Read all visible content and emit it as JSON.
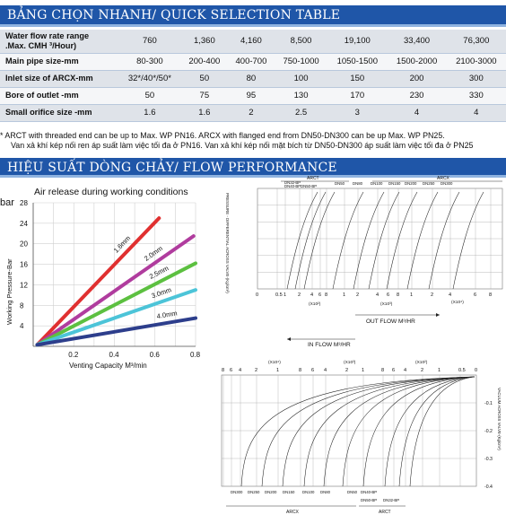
{
  "quick_table": {
    "title": "BẢNG CHỌN NHANH/ QUICK SELECTION TABLE",
    "rows": [
      {
        "label_lines": [
          "Water flow rate range",
          ".Max. CMH ³/Hour)"
        ],
        "values": [
          "760",
          "1,360",
          "4,160",
          "8,500",
          "19,100",
          "33,400",
          "76,300"
        ]
      },
      {
        "label_lines": [
          "Main pipe size-mm"
        ],
        "values": [
          "80-300",
          "200-400",
          "400-700",
          "750-1000",
          "1050-1500",
          "1500-2000",
          "2100-3000"
        ]
      },
      {
        "label_lines": [
          "Inlet size of ARCX-mm"
        ],
        "values": [
          "32*/40*/50*",
          "50",
          "80",
          "100",
          "150",
          "200",
          "300"
        ]
      },
      {
        "label_lines": [
          "Bore of outlet -mm"
        ],
        "values": [
          "50",
          "75",
          "95",
          "130",
          "170",
          "230",
          "330"
        ]
      },
      {
        "label_lines": [
          "Small orifice size -mm"
        ],
        "values": [
          "1.6",
          "1.6",
          "2",
          "2.5",
          "3",
          "4",
          "4"
        ]
      }
    ],
    "notes": [
      "* ARCT with threaded end can be up to Max. WP PN16. ARCX with flanged end from DN50-DN300 can be up Max. WP PN25.",
      "Van xả khí kép nối ren áp suất làm việc tối đa ở PN16. Van xả khí kép nối mặt bích từ DN50-DN300 áp suất làm việc tối đa ở PN25"
    ]
  },
  "flow_section": {
    "title": "HIỆU SUẤT DÒNG CHẢY/ FLOW PERFORMANCE"
  },
  "chart_data": [
    {
      "type": "line",
      "title": "Air release during working conditions",
      "xlabel": "Venting  Capacity  M³/min",
      "ylabel": "Working Pressure-Bar",
      "yunit": "bar",
      "xlim": [
        0,
        0.8
      ],
      "ylim": [
        0,
        28
      ],
      "xticks": [
        "0.2",
        "0.4",
        "0.6",
        "0.8"
      ],
      "yticks": [
        "4",
        "8",
        "12",
        "16",
        "20",
        "24",
        "28"
      ],
      "grid": true,
      "series": [
        {
          "name": "1.6mm",
          "color": "#e03030",
          "x": [
            0.02,
            0.62
          ],
          "y": [
            0.3,
            25
          ]
        },
        {
          "name": "2.0mm",
          "color": "#b03c9e",
          "x": [
            0.02,
            0.79
          ],
          "y": [
            0.3,
            21.5
          ]
        },
        {
          "name": "2.5mm",
          "color": "#5cc040",
          "x": [
            0.02,
            0.8
          ],
          "y": [
            0.3,
            16.2
          ]
        },
        {
          "name": "3.0mm",
          "color": "#4cc4d8",
          "x": [
            0.02,
            0.8
          ],
          "y": [
            0.3,
            11
          ]
        },
        {
          "name": "4.0mm",
          "color": "#2d3e8c",
          "x": [
            0.02,
            0.8
          ],
          "y": [
            0.3,
            5.5
          ]
        }
      ]
    },
    {
      "type": "line",
      "group_labels": [
        "ARCT",
        "ARCX"
      ],
      "curve_labels": [
        "DN32-BP",
        "DN40-BP",
        "DN50-BP",
        "DN50",
        "DN80",
        "DN100",
        "DN150",
        "DN200",
        "DN250",
        "DN300"
      ],
      "ylabel": "PRESSURE - DIFFERENTIAL ACROSS VALVE-(Kg/cm²)",
      "xlabel": "OUT FLOW M³/HR",
      "xticks": [
        "0",
        "0.5",
        "1",
        "2",
        "4",
        "6",
        "8",
        "1",
        "2",
        "4",
        "6",
        "8",
        "1",
        "2",
        "4",
        "6",
        "8"
      ],
      "x_multipliers": [
        "(X10²)",
        "(X10³)",
        "(X10⁴)"
      ],
      "curve_count": 10
    },
    {
      "type": "line",
      "group_labels": [
        "ARCX",
        "ARCT"
      ],
      "curve_labels": [
        "DN300",
        "DN250",
        "DN200",
        "DN150",
        "DN100",
        "DN80",
        "DN50",
        "DN50-BP",
        "DN40-BP",
        "DN32-BP"
      ],
      "ylabel": "VACUUM ACROSS VALVE-(Kg/cm²)",
      "xlabel": "IN FLOW M³/HR",
      "xticks": [
        "8",
        "6",
        "4",
        "2",
        "1",
        "8",
        "6",
        "4",
        "2",
        "1",
        "8",
        "6",
        "4",
        "2",
        "1",
        "0.5",
        "0"
      ],
      "x_multipliers": [
        "(X10⁴)",
        "(X10³)",
        "(X10²)"
      ],
      "yticks": [
        "-0.1",
        "-0.2",
        "-0.3",
        "-0.4"
      ],
      "curve_count": 10
    }
  ]
}
